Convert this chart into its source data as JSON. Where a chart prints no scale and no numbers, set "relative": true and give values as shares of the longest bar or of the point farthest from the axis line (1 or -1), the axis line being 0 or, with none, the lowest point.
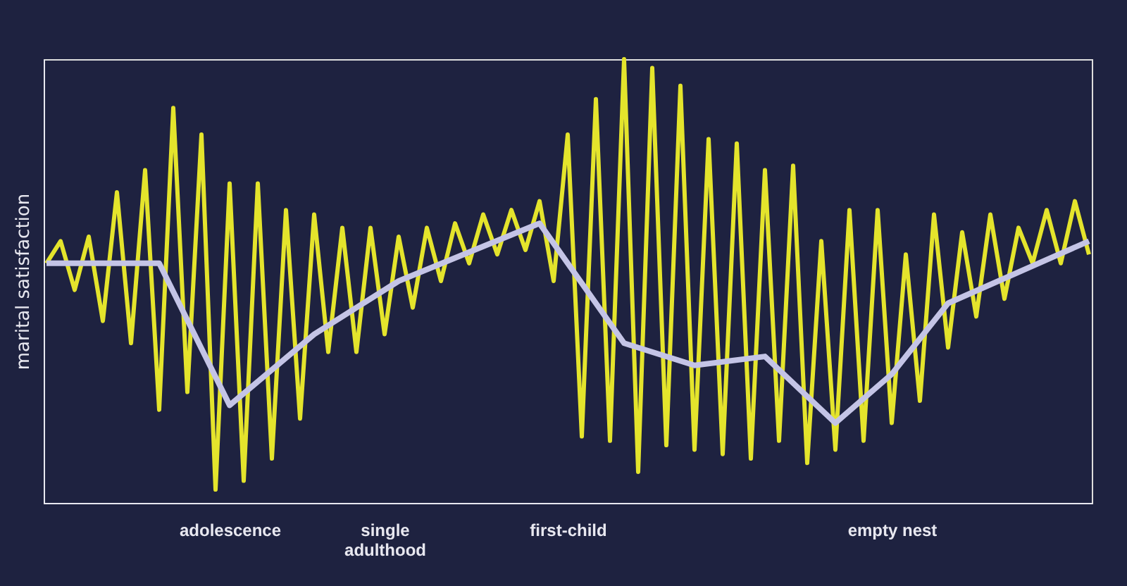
{
  "chart_data": {
    "type": "line",
    "relative": true,
    "ylabel": "marital satisfaction",
    "categories": [
      null,
      null,
      null,
      null,
      null,
      null,
      null,
      null,
      null,
      null,
      null,
      null,
      null,
      "adolescence",
      null,
      null,
      null,
      null,
      null,
      null,
      null,
      null,
      null,
      null,
      "single\nadulthood",
      null,
      null,
      null,
      null,
      null,
      null,
      null,
      null,
      null,
      null,
      null,
      null,
      "first-child",
      null,
      null,
      null,
      null,
      null,
      null,
      null,
      null,
      null,
      null,
      null,
      null,
      null,
      null,
      null,
      null,
      null,
      null,
      null,
      null,
      null,
      null,
      "empty nest",
      null,
      null,
      null,
      null,
      null,
      null,
      null,
      null,
      null,
      null,
      null,
      null,
      null,
      null
    ],
    "grid": false,
    "marker": "none",
    "line_style": "solid",
    "series": [
      {
        "color": "#e4e42c",
        "values": [
          0.54,
          0.59,
          0.48,
          0.6,
          0.41,
          0.7,
          0.36,
          0.75,
          0.21,
          0.89,
          0.25,
          0.83,
          0.03,
          0.72,
          0.05,
          0.72,
          0.1,
          0.66,
          0.19,
          0.65,
          0.34,
          0.62,
          0.34,
          0.62,
          0.38,
          0.6,
          0.44,
          0.62,
          0.5,
          0.63,
          0.54,
          0.65,
          0.56,
          0.66,
          0.57,
          0.68,
          0.5,
          0.83,
          0.15,
          0.91,
          0.14,
          1.0,
          0.07,
          0.98,
          0.13,
          0.94,
          0.12,
          0.82,
          0.11,
          0.81,
          0.1,
          0.75,
          0.14,
          0.76,
          0.09,
          0.59,
          0.12,
          0.66,
          0.14,
          0.66,
          0.18,
          0.56,
          0.23,
          0.65,
          0.35,
          0.61,
          0.42,
          0.65,
          0.46,
          0.62,
          0.54,
          0.66,
          0.54,
          0.68,
          0.56
        ]
      },
      {
        "color": "#c4c4e6",
        "values": [
          0.54,
          null,
          null,
          null,
          null,
          null,
          null,
          null,
          0.54,
          null,
          null,
          null,
          null,
          0.22,
          null,
          null,
          null,
          null,
          null,
          0.38,
          null,
          null,
          null,
          null,
          null,
          0.5,
          null,
          null,
          null,
          null,
          null,
          null,
          null,
          null,
          null,
          0.63,
          null,
          null,
          null,
          null,
          null,
          0.36,
          null,
          null,
          null,
          null,
          0.31,
          null,
          null,
          null,
          null,
          0.33,
          null,
          null,
          null,
          null,
          0.18,
          null,
          null,
          null,
          0.29,
          null,
          null,
          null,
          0.45,
          null,
          null,
          null,
          null,
          null,
          null,
          null,
          null,
          null,
          0.59
        ]
      }
    ]
  }
}
